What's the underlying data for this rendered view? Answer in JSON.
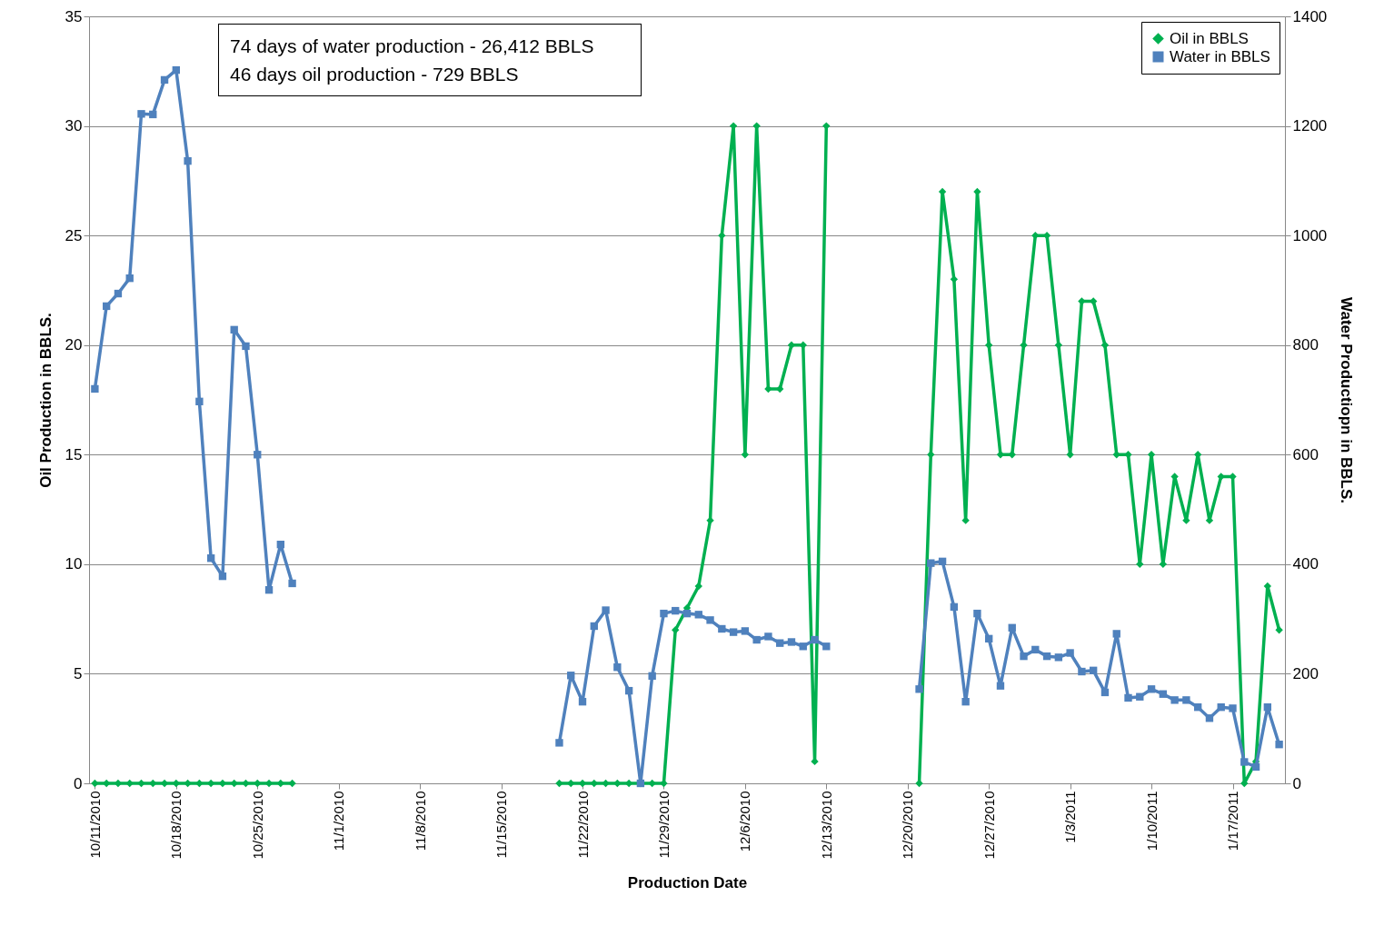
{
  "chart_data": {
    "type": "line",
    "xlabel": "Production Date",
    "ylabel": "Oil Production in BBLS.",
    "y2label": "Water Productiopn in BBLS.",
    "annotations": [
      "74 days of water production - 26,412  BBLS",
      "46 days oil production - 729  BBLS"
    ],
    "x": [
      "2010-10-11",
      "2010-10-12",
      "2010-10-13",
      "2010-10-14",
      "2010-10-15",
      "2010-10-16",
      "2010-10-17",
      "2010-10-18",
      "2010-10-19",
      "2010-10-20",
      "2010-10-21",
      "2010-10-22",
      "2010-10-23",
      "2010-10-24",
      "2010-10-25",
      "2010-10-26",
      "2010-10-27",
      "2010-10-28",
      "2010-10-29",
      "2010-10-30",
      "2010-10-31",
      "2010-11-01",
      "2010-11-02",
      "2010-11-03",
      "2010-11-04",
      "2010-11-05",
      "2010-11-06",
      "2010-11-07",
      "2010-11-08",
      "2010-11-09",
      "2010-11-10",
      "2010-11-11",
      "2010-11-12",
      "2010-11-13",
      "2010-11-14",
      "2010-11-15",
      "2010-11-16",
      "2010-11-17",
      "2010-11-18",
      "2010-11-19",
      "2010-11-20",
      "2010-11-21",
      "2010-11-22",
      "2010-11-23",
      "2010-11-24",
      "2010-11-25",
      "2010-11-26",
      "2010-11-27",
      "2010-11-28",
      "2010-11-29",
      "2010-11-30",
      "2010-12-01",
      "2010-12-02",
      "2010-12-03",
      "2010-12-04",
      "2010-12-05",
      "2010-12-06",
      "2010-12-07",
      "2010-12-08",
      "2010-12-09",
      "2010-12-10",
      "2010-12-11",
      "2010-12-12",
      "2010-12-13",
      "2010-12-14",
      "2010-12-15",
      "2010-12-16",
      "2010-12-17",
      "2010-12-18",
      "2010-12-19",
      "2010-12-20",
      "2010-12-21",
      "2010-12-22",
      "2010-12-23",
      "2010-12-24",
      "2010-12-25",
      "2010-12-26",
      "2010-12-27",
      "2010-12-28",
      "2010-12-29",
      "2010-12-30",
      "2010-12-31",
      "2011-01-01",
      "2011-01-02",
      "2011-01-03",
      "2011-01-04",
      "2011-01-05",
      "2011-01-06",
      "2011-01-07",
      "2011-01-08",
      "2011-01-09",
      "2011-01-10",
      "2011-01-11",
      "2011-01-12",
      "2011-01-13",
      "2011-01-14",
      "2011-01-15",
      "2011-01-16",
      "2011-01-17",
      "2011-01-18",
      "2011-01-19",
      "2011-01-20",
      "2011-01-21"
    ],
    "series": [
      {
        "name": "Oil in BBLS",
        "color": "#00b050",
        "marker": "diamond",
        "values": [
          0,
          0,
          0,
          0,
          0,
          0,
          0,
          0,
          0,
          0,
          0,
          0,
          0,
          0,
          0,
          0,
          0,
          0,
          null,
          null,
          null,
          null,
          null,
          null,
          null,
          null,
          null,
          null,
          null,
          null,
          null,
          null,
          null,
          null,
          null,
          null,
          null,
          null,
          null,
          null,
          0,
          0,
          0,
          0,
          0,
          0,
          0,
          0,
          0,
          0,
          7,
          8,
          9,
          12,
          25,
          30,
          15,
          30,
          18,
          18,
          20,
          20,
          1,
          30,
          null,
          null,
          null,
          null,
          null,
          null,
          null,
          0,
          15,
          27,
          23,
          12,
          27,
          20,
          15,
          15,
          20,
          25,
          25,
          20,
          15,
          22,
          22,
          20,
          15,
          15,
          10,
          15,
          10,
          14,
          12,
          15,
          12,
          14,
          14,
          0,
          1,
          9,
          7
        ]
      },
      {
        "name": "Water in BBLS",
        "color": "#4f81bd",
        "marker": "square",
        "axis": "y2",
        "values": [
          720,
          871,
          894,
          922,
          1222,
          1221,
          1284,
          1302,
          1136,
          697,
          411,
          378,
          828,
          798,
          600,
          353,
          436,
          365,
          null,
          null,
          null,
          null,
          null,
          null,
          null,
          null,
          null,
          null,
          null,
          null,
          null,
          null,
          null,
          null,
          null,
          null,
          null,
          null,
          null,
          null,
          74,
          197,
          149,
          287,
          316,
          212,
          169,
          0,
          196,
          310,
          315,
          310,
          308,
          298,
          282,
          276,
          278,
          262,
          268,
          256,
          258,
          250,
          262,
          250,
          null,
          null,
          null,
          null,
          null,
          null,
          null,
          172,
          402,
          405,
          322,
          149,
          310,
          264,
          178,
          284,
          232,
          244,
          232,
          230,
          238,
          204,
          206,
          166,
          273,
          156,
          158,
          172,
          163,
          152,
          152,
          139,
          119,
          139,
          137,
          39,
          30,
          139,
          71
        ]
      }
    ],
    "xlim": [
      "2010-10-10T12:00",
      "2011-01-21T12:00"
    ],
    "xticks": [
      {
        "value": "2010-10-11",
        "label": "10/11/2010"
      },
      {
        "value": "2010-10-18",
        "label": "10/18/2010"
      },
      {
        "value": "2010-10-25",
        "label": "10/25/2010"
      },
      {
        "value": "2010-11-01",
        "label": "11/1/2010"
      },
      {
        "value": "2010-11-08",
        "label": "11/8/2010"
      },
      {
        "value": "2010-11-15",
        "label": "11/15/2010"
      },
      {
        "value": "2010-11-22",
        "label": "11/22/2010"
      },
      {
        "value": "2010-11-29",
        "label": "11/29/2010"
      },
      {
        "value": "2010-12-06",
        "label": "12/6/2010"
      },
      {
        "value": "2010-12-13",
        "label": "12/13/2010"
      },
      {
        "value": "2010-12-20",
        "label": "12/20/2010"
      },
      {
        "value": "2010-12-27",
        "label": "12/27/2010"
      },
      {
        "value": "2011-01-03",
        "label": "1/3/2011"
      },
      {
        "value": "2011-01-10",
        "label": "1/10/2011"
      },
      {
        "value": "2011-01-17",
        "label": "1/17/2011"
      }
    ],
    "ylim": [
      0,
      35
    ],
    "yticks": [
      0,
      5,
      10,
      15,
      20,
      25,
      30,
      35
    ],
    "y2lim": [
      0,
      1400
    ],
    "y2ticks": [
      0,
      200,
      400,
      600,
      800,
      1000,
      1200,
      1400
    ],
    "grid": "y",
    "legend": "top right"
  }
}
